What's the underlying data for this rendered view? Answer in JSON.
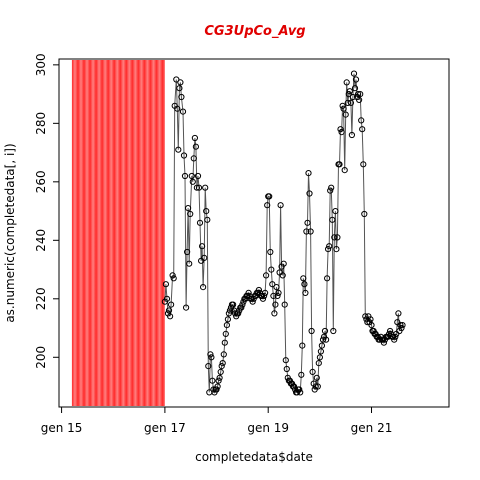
{
  "chart_data": {
    "type": "line",
    "title": "CG3UpCo_Avg",
    "xlabel": "completedata$date",
    "ylabel": "as.numeric(completedata[, i])",
    "x_ticks": [
      "gen 15",
      "gen 17",
      "gen 19",
      "gen 21"
    ],
    "x_tick_values": [
      15,
      17,
      19,
      21
    ],
    "y_ticks": [
      200,
      220,
      240,
      260,
      280,
      300
    ],
    "xlim": [
      14.95,
      22.5
    ],
    "ylim": [
      183,
      302
    ],
    "highlight_band": {
      "x_start": 15.2,
      "x_end": 17.0,
      "color": "#ff3030"
    },
    "colors": {
      "line": "#555555",
      "points": "#000000",
      "title": "#e00000"
    },
    "series": [
      {
        "markers": "open-circle",
        "points": [
          [
            17.0,
            219
          ],
          [
            17.02,
            225
          ],
          [
            17.04,
            220
          ],
          [
            17.06,
            215
          ],
          [
            17.08,
            216
          ],
          [
            17.1,
            214
          ],
          [
            17.12,
            218
          ],
          [
            17.15,
            228
          ],
          [
            17.17,
            227
          ],
          [
            17.19,
            286
          ],
          [
            17.22,
            295
          ],
          [
            17.24,
            285
          ],
          [
            17.26,
            271
          ],
          [
            17.28,
            292
          ],
          [
            17.3,
            294
          ],
          [
            17.32,
            289
          ],
          [
            17.35,
            284
          ],
          [
            17.37,
            269
          ],
          [
            17.39,
            262
          ],
          [
            17.41,
            217
          ],
          [
            17.43,
            236
          ],
          [
            17.45,
            251
          ],
          [
            17.47,
            232
          ],
          [
            17.49,
            249
          ],
          [
            17.52,
            262
          ],
          [
            17.54,
            260
          ],
          [
            17.56,
            268
          ],
          [
            17.58,
            275
          ],
          [
            17.6,
            272
          ],
          [
            17.62,
            258
          ],
          [
            17.64,
            262
          ],
          [
            17.66,
            258
          ],
          [
            17.68,
            246
          ],
          [
            17.7,
            233
          ],
          [
            17.72,
            238
          ],
          [
            17.74,
            224
          ],
          [
            17.76,
            234
          ],
          [
            17.78,
            258
          ],
          [
            17.8,
            250
          ],
          [
            17.82,
            247
          ],
          [
            17.84,
            197
          ],
          [
            17.86,
            188
          ],
          [
            17.88,
            201
          ],
          [
            17.9,
            200
          ],
          [
            17.92,
            192
          ],
          [
            17.94,
            189
          ],
          [
            17.96,
            188
          ],
          [
            17.98,
            189
          ],
          [
            18.0,
            189
          ],
          [
            18.02,
            190
          ],
          [
            18.04,
            192
          ],
          [
            18.06,
            193
          ],
          [
            18.08,
            195
          ],
          [
            18.1,
            197
          ],
          [
            18.12,
            198
          ],
          [
            18.14,
            201
          ],
          [
            18.16,
            205
          ],
          [
            18.18,
            208
          ],
          [
            18.2,
            211
          ],
          [
            18.22,
            213
          ],
          [
            18.24,
            215
          ],
          [
            18.26,
            216
          ],
          [
            18.28,
            217
          ],
          [
            18.3,
            218
          ],
          [
            18.32,
            218
          ],
          [
            18.34,
            216
          ],
          [
            18.36,
            215
          ],
          [
            18.38,
            214
          ],
          [
            18.4,
            215
          ],
          [
            18.42,
            215
          ],
          [
            18.44,
            216
          ],
          [
            18.46,
            217
          ],
          [
            18.48,
            217
          ],
          [
            18.5,
            218
          ],
          [
            18.52,
            219
          ],
          [
            18.54,
            220
          ],
          [
            18.56,
            220
          ],
          [
            18.58,
            221
          ],
          [
            18.6,
            221
          ],
          [
            18.62,
            222
          ],
          [
            18.64,
            221
          ],
          [
            18.66,
            220
          ],
          [
            18.68,
            220
          ],
          [
            18.7,
            219
          ],
          [
            18.72,
            220
          ],
          [
            18.74,
            221
          ],
          [
            18.76,
            221
          ],
          [
            18.78,
            222
          ],
          [
            18.8,
            222
          ],
          [
            18.82,
            223
          ],
          [
            18.84,
            222
          ],
          [
            18.86,
            221
          ],
          [
            18.88,
            221
          ],
          [
            18.9,
            220
          ],
          [
            18.92,
            221
          ],
          [
            18.94,
            222
          ],
          [
            18.96,
            228
          ],
          [
            18.98,
            252
          ],
          [
            19.0,
            255
          ],
          [
            19.02,
            255
          ],
          [
            19.04,
            236
          ],
          [
            19.06,
            230
          ],
          [
            19.08,
            225
          ],
          [
            19.1,
            221
          ],
          [
            19.12,
            215
          ],
          [
            19.14,
            218
          ],
          [
            19.16,
            224
          ],
          [
            19.18,
            221
          ],
          [
            19.2,
            222
          ],
          [
            19.22,
            229
          ],
          [
            19.24,
            252
          ],
          [
            19.26,
            231
          ],
          [
            19.28,
            228
          ],
          [
            19.3,
            232
          ],
          [
            19.32,
            218
          ],
          [
            19.34,
            199
          ],
          [
            19.36,
            196
          ],
          [
            19.38,
            193
          ],
          [
            19.4,
            192
          ],
          [
            19.42,
            192
          ],
          [
            19.44,
            191
          ],
          [
            19.46,
            191
          ],
          [
            19.48,
            190
          ],
          [
            19.5,
            190
          ],
          [
            19.52,
            189
          ],
          [
            19.54,
            188
          ],
          [
            19.56,
            188
          ],
          [
            19.58,
            189
          ],
          [
            19.6,
            189
          ],
          [
            19.62,
            188
          ],
          [
            19.64,
            194
          ],
          [
            19.66,
            204
          ],
          [
            19.68,
            227
          ],
          [
            19.7,
            225
          ],
          [
            19.72,
            222
          ],
          [
            19.74,
            243
          ],
          [
            19.76,
            246
          ],
          [
            19.78,
            263
          ],
          [
            19.8,
            256
          ],
          [
            19.82,
            243
          ],
          [
            19.84,
            209
          ],
          [
            19.86,
            195
          ],
          [
            19.88,
            191
          ],
          [
            19.9,
            189
          ],
          [
            19.92,
            190
          ],
          [
            19.94,
            193
          ],
          [
            19.96,
            190
          ],
          [
            19.98,
            198
          ],
          [
            20.0,
            200
          ],
          [
            20.02,
            202
          ],
          [
            20.04,
            204
          ],
          [
            20.06,
            206
          ],
          [
            20.08,
            207
          ],
          [
            20.1,
            209
          ],
          [
            20.12,
            206
          ],
          [
            20.14,
            227
          ],
          [
            20.16,
            237
          ],
          [
            20.18,
            238
          ],
          [
            20.2,
            257
          ],
          [
            20.22,
            258
          ],
          [
            20.24,
            247
          ],
          [
            20.26,
            209
          ],
          [
            20.28,
            241
          ],
          [
            20.3,
            250
          ],
          [
            20.32,
            237
          ],
          [
            20.34,
            241
          ],
          [
            20.36,
            266
          ],
          [
            20.38,
            266
          ],
          [
            20.4,
            278
          ],
          [
            20.42,
            277
          ],
          [
            20.44,
            286
          ],
          [
            20.46,
            285
          ],
          [
            20.48,
            264
          ],
          [
            20.5,
            283
          ],
          [
            20.52,
            294
          ],
          [
            20.54,
            287
          ],
          [
            20.56,
            290
          ],
          [
            20.58,
            291
          ],
          [
            20.6,
            287
          ],
          [
            20.62,
            276
          ],
          [
            20.64,
            289
          ],
          [
            20.66,
            297
          ],
          [
            20.68,
            292
          ],
          [
            20.7,
            295
          ],
          [
            20.72,
            289
          ],
          [
            20.74,
            290
          ],
          [
            20.76,
            288
          ],
          [
            20.78,
            290
          ],
          [
            20.8,
            281
          ],
          [
            20.82,
            278
          ],
          [
            20.84,
            266
          ],
          [
            20.86,
            249
          ],
          [
            20.88,
            214
          ],
          [
            20.9,
            213
          ],
          [
            20.92,
            212
          ],
          [
            20.94,
            214
          ],
          [
            20.96,
            212
          ],
          [
            20.98,
            213
          ],
          [
            21.0,
            211
          ],
          [
            21.02,
            209
          ],
          [
            21.04,
            209
          ],
          [
            21.06,
            208
          ],
          [
            21.08,
            208
          ],
          [
            21.1,
            207
          ],
          [
            21.12,
            207
          ],
          [
            21.14,
            206
          ],
          [
            21.16,
            206
          ],
          [
            21.18,
            207
          ],
          [
            21.2,
            206
          ],
          [
            21.22,
            206
          ],
          [
            21.24,
            205
          ],
          [
            21.26,
            206
          ],
          [
            21.28,
            207
          ],
          [
            21.3,
            207
          ],
          [
            21.32,
            207
          ],
          [
            21.34,
            208
          ],
          [
            21.36,
            209
          ],
          [
            21.38,
            208
          ],
          [
            21.4,
            207
          ],
          [
            21.42,
            207
          ],
          [
            21.44,
            206
          ],
          [
            21.46,
            207
          ],
          [
            21.48,
            208
          ],
          [
            21.5,
            212
          ],
          [
            21.52,
            215
          ],
          [
            21.54,
            209
          ],
          [
            21.56,
            211
          ],
          [
            21.58,
            210
          ],
          [
            21.6,
            211
          ]
        ]
      }
    ]
  }
}
